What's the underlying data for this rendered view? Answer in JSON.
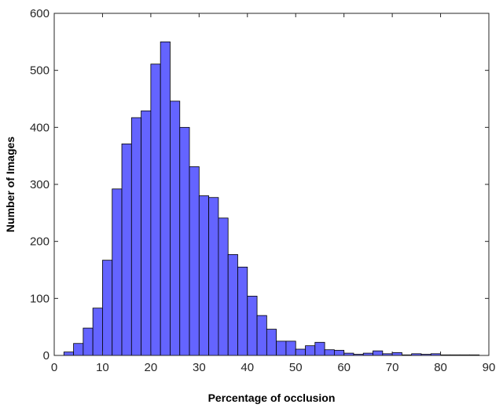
{
  "chart_data": {
    "type": "bar",
    "title": "",
    "xlabel": "Percentage of occlusion",
    "ylabel": "Number of Images",
    "xlim": [
      0,
      90
    ],
    "ylim": [
      0,
      600
    ],
    "xticks": [
      0,
      10,
      20,
      30,
      40,
      50,
      60,
      70,
      80,
      90
    ],
    "yticks": [
      0,
      100,
      200,
      300,
      400,
      500,
      600
    ],
    "xtick_labels": [
      "0",
      "10",
      "20",
      "30",
      "40",
      "50",
      "60",
      "70",
      "80",
      "90"
    ],
    "ytick_labels": [
      "0",
      "100",
      "200",
      "300",
      "400",
      "500",
      "600"
    ],
    "bin_width": 2,
    "bin_edges_start": [
      2,
      4,
      6,
      8,
      10,
      12,
      14,
      16,
      18,
      20,
      22,
      24,
      26,
      28,
      30,
      32,
      34,
      36,
      38,
      40,
      42,
      44,
      46,
      48,
      50,
      52,
      54,
      56,
      58,
      60,
      62,
      64,
      66,
      68,
      70,
      72,
      74,
      76,
      78,
      80,
      82,
      84,
      86
    ],
    "values": [
      6,
      21,
      48,
      83,
      167,
      292,
      371,
      417,
      429,
      511,
      550,
      446,
      400,
      331,
      280,
      277,
      241,
      177,
      155,
      104,
      70,
      46,
      25,
      25,
      11,
      17,
      23,
      10,
      9,
      4,
      2,
      4,
      8,
      3,
      5,
      1,
      3,
      2,
      3,
      1,
      1,
      1,
      1
    ],
    "grid": false,
    "bar_color": "#6464ff",
    "bar_edge_color": "#000000"
  }
}
